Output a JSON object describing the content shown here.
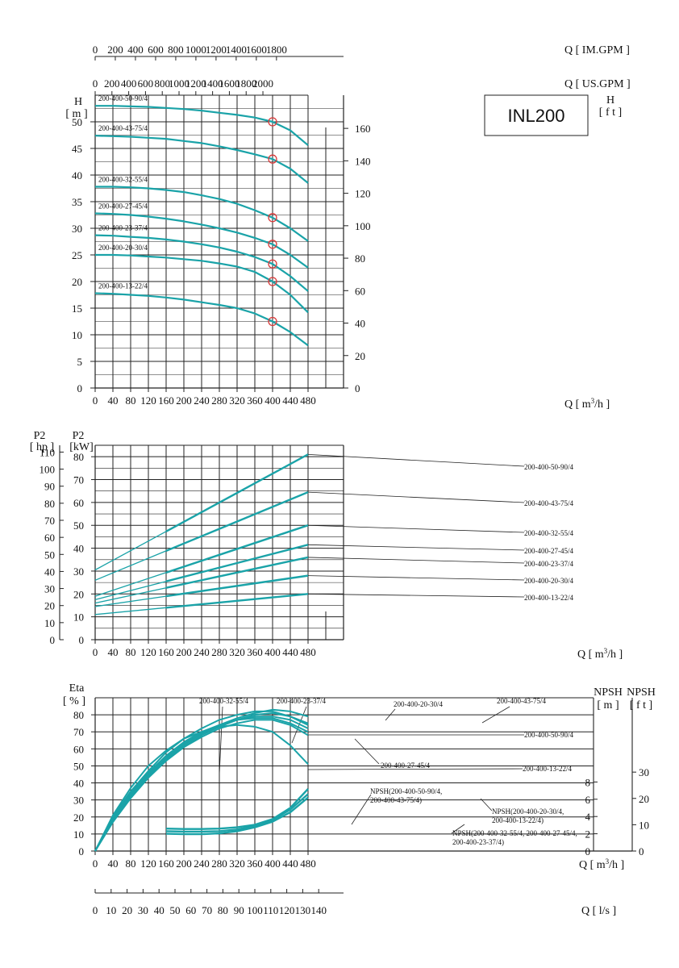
{
  "chart_data": [
    {
      "type": "line",
      "title": "INL200",
      "flow_axes": {
        "im_gpm": {
          "label": "Q [ IM.GPM ]",
          "ticks": [
            0,
            200,
            400,
            600,
            800,
            1000,
            1200,
            1400,
            1600,
            1800
          ]
        },
        "us_gpm": {
          "label": "Q [ US.GPM ]",
          "ticks": [
            0,
            200,
            400,
            600,
            800,
            1000,
            1200,
            1400,
            1600,
            1800,
            2000
          ]
        },
        "m3h": {
          "label": "Q [ m³/h ]",
          "ticks": [
            0,
            40,
            80,
            120,
            160,
            200,
            240,
            280,
            320,
            360,
            400,
            440,
            480
          ]
        }
      },
      "xlim": [
        0,
        560
      ],
      "ylabel_left": {
        "symbol": "H",
        "unit": "[ m ]"
      },
      "ylabel_right": {
        "symbol": "H",
        "unit": "[ f t ]"
      },
      "ylim": [
        0,
        55
      ],
      "y_ticks_left": [
        0,
        5,
        10,
        15,
        20,
        25,
        30,
        35,
        40,
        45,
        50
      ],
      "y_ticks_right": [
        0,
        20,
        40,
        60,
        80,
        100,
        120,
        140,
        160
      ],
      "x": [
        0,
        40,
        80,
        120,
        160,
        200,
        240,
        280,
        320,
        360,
        400,
        440,
        480
      ],
      "series": [
        {
          "name": "200-400-50-90/4",
          "values": [
            53,
            53,
            52.9,
            52.8,
            52.6,
            52.4,
            52.1,
            51.7,
            51.3,
            50.8,
            50.0,
            48.4,
            45.6
          ]
        },
        {
          "name": "200-400-43-75/4",
          "values": [
            47.4,
            47.3,
            47.2,
            47.0,
            46.8,
            46.4,
            46.0,
            45.4,
            44.7,
            43.9,
            43.0,
            41.2,
            38.5
          ]
        },
        {
          "name": "200-400-32-55/4",
          "values": [
            37.8,
            37.8,
            37.7,
            37.5,
            37.2,
            36.8,
            36.2,
            35.5,
            34.6,
            33.4,
            32.0,
            30.0,
            27.6
          ]
        },
        {
          "name": "200-400-27-45/4",
          "values": [
            32.8,
            32.7,
            32.5,
            32.2,
            31.8,
            31.3,
            30.7,
            30.0,
            29.2,
            28.2,
            27.0,
            25.0,
            22.6
          ]
        },
        {
          "name": "200-400-23-37/4",
          "values": [
            28.7,
            28.6,
            28.4,
            28.2,
            27.9,
            27.5,
            27.0,
            26.4,
            25.6,
            24.6,
            23.3,
            21.0,
            18.2
          ]
        },
        {
          "name": "200-400-20-30/4",
          "values": [
            25.0,
            25.0,
            24.9,
            24.7,
            24.5,
            24.2,
            23.9,
            23.4,
            22.8,
            21.8,
            20.0,
            17.5,
            14.2
          ]
        },
        {
          "name": "200-400-13-22/4",
          "values": [
            17.8,
            17.7,
            17.5,
            17.3,
            17.0,
            16.6,
            16.1,
            15.6,
            15.0,
            14.0,
            12.5,
            10.5,
            8.0
          ]
        }
      ],
      "markers": [
        {
          "series": "200-400-50-90/4",
          "x": 400,
          "y": 50.0
        },
        {
          "series": "200-400-43-75/4",
          "x": 400,
          "y": 43.0
        },
        {
          "series": "200-400-32-55/4",
          "x": 400,
          "y": 32.0
        },
        {
          "series": "200-400-27-45/4",
          "x": 400,
          "y": 27.0
        },
        {
          "series": "200-400-23-37/4",
          "x": 400,
          "y": 23.3
        },
        {
          "series": "200-400-20-30/4",
          "x": 400,
          "y": 20.0
        },
        {
          "series": "200-400-13-22/4",
          "x": 400,
          "y": 12.5
        }
      ],
      "grid": true
    },
    {
      "type": "line",
      "title": "",
      "ylabel_left": {
        "symbol": "P2",
        "unit": "[ hp ]"
      },
      "ylabel_right": {
        "symbol": "P2",
        "unit": "[kW]"
      },
      "kw_ticks": [
        0,
        10,
        20,
        30,
        40,
        50,
        60,
        70,
        80
      ],
      "hp_ticks": [
        0,
        10,
        20,
        30,
        40,
        50,
        60,
        70,
        80,
        90,
        100,
        110
      ],
      "ylim": [
        0,
        85
      ],
      "xlim": [
        0,
        560
      ],
      "x_ticks": [
        0,
        40,
        80,
        120,
        160,
        200,
        240,
        280,
        320,
        360,
        400,
        440,
        480
      ],
      "xlabel": "Q [ m³/h ]",
      "series": [
        {
          "name": "200-400-50-90/4",
          "x": [
            0,
            480
          ],
          "values": [
            30.5,
            81.0
          ]
        },
        {
          "name": "200-400-43-75/4",
          "x": [
            0,
            480
          ],
          "values": [
            26.0,
            64.5
          ]
        },
        {
          "name": "200-400-32-55/4",
          "x": [
            0,
            480
          ],
          "values": [
            19.0,
            50.0
          ]
        },
        {
          "name": "200-400-27-45/4",
          "x": [
            0,
            480
          ],
          "values": [
            17.5,
            41.5
          ]
        },
        {
          "name": "200-400-23-37/4",
          "x": [
            0,
            480
          ],
          "values": [
            16.0,
            36.0
          ]
        },
        {
          "name": "200-400-20-30/4",
          "x": [
            0,
            480
          ],
          "values": [
            14.5,
            28.0
          ]
        },
        {
          "name": "200-400-13-22/4",
          "x": [
            0,
            480
          ],
          "values": [
            11.0,
            20.0
          ]
        }
      ],
      "grid": true
    },
    {
      "type": "line",
      "title": "",
      "ylabel_left": {
        "symbol": "Eta",
        "unit": "[ % ]"
      },
      "npsh_m": {
        "symbol": "NPSH",
        "unit": "[ m ]",
        "ticks": [
          0,
          2,
          4,
          6,
          8
        ]
      },
      "npsh_ft": {
        "symbol": "NPSH",
        "unit": "[ f t ]",
        "ticks": [
          0,
          10,
          20,
          30
        ]
      },
      "eta_ticks": [
        0,
        10,
        20,
        30,
        40,
        50,
        60,
        70,
        80
      ],
      "ylim": [
        0,
        90
      ],
      "xlim": [
        0,
        560
      ],
      "x_ticks": [
        0,
        40,
        80,
        120,
        160,
        200,
        240,
        280,
        320,
        360,
        400,
        440,
        480
      ],
      "xlabel": "Q [ m³/h ]",
      "efficiency_series": [
        {
          "name": "200-400-32-55/4",
          "x": [
            0,
            40,
            80,
            120,
            160,
            200,
            240,
            280,
            320,
            360,
            400,
            440,
            480
          ],
          "values": [
            0,
            19,
            34,
            46,
            56,
            64,
            70,
            74,
            77,
            78,
            78,
            75,
            70
          ]
        },
        {
          "name": "200-400-23-37/4",
          "x": [
            0,
            40,
            80,
            120,
            160,
            200,
            240,
            280,
            320,
            360,
            400,
            440,
            480
          ],
          "values": [
            0,
            19,
            33,
            45,
            55,
            63,
            69,
            74,
            77,
            79,
            79,
            77,
            72
          ]
        },
        {
          "name": "200-400-20-30/4",
          "x": [
            0,
            40,
            80,
            120,
            160,
            200,
            240,
            280,
            320,
            360,
            400,
            440,
            480
          ],
          "values": [
            0,
            20,
            35,
            47,
            58,
            66,
            72,
            77,
            80,
            82,
            82,
            79,
            74
          ]
        },
        {
          "name": "200-400-43-75/4",
          "x": [
            0,
            40,
            80,
            120,
            160,
            200,
            240,
            280,
            320,
            360,
            400,
            440,
            480
          ],
          "values": [
            0,
            18,
            32,
            44,
            54,
            62,
            69,
            74,
            78,
            81,
            83,
            82,
            79
          ]
        },
        {
          "name": "200-400-27-45/4",
          "x": [
            0,
            40,
            80,
            120,
            160,
            200,
            240,
            280,
            320,
            360,
            400,
            440,
            480
          ],
          "values": [
            0,
            18,
            32,
            44,
            53,
            61,
            67,
            72,
            75,
            77,
            77,
            74,
            68
          ]
        },
        {
          "name": "200-400-50-90/4",
          "x": [
            0,
            40,
            80,
            120,
            160,
            200,
            240,
            280,
            320,
            360,
            400,
            440,
            480
          ],
          "values": [
            0,
            17,
            31,
            43,
            53,
            61,
            68,
            73,
            77,
            80,
            81,
            79,
            75
          ]
        },
        {
          "name": "200-400-13-22/4",
          "x": [
            0,
            40,
            80,
            120,
            160,
            200,
            240,
            280,
            320,
            360,
            400,
            440,
            480
          ],
          "values": [
            0,
            21,
            37,
            50,
            59,
            66,
            70,
            73,
            74,
            73,
            70,
            62,
            51
          ]
        }
      ],
      "npsh_series": [
        {
          "name": "NPSH(200-400-50-90/4, 200-400-43-75/4)",
          "x": [
            160,
            200,
            240,
            280,
            320,
            360,
            400,
            440,
            480
          ],
          "values": [
            2.6,
            2.55,
            2.55,
            2.6,
            2.75,
            3.05,
            3.7,
            5.0,
            7.2
          ]
        },
        {
          "name": "NPSH(200-400-20-30/4, 200-400-13-22/4)",
          "x": [
            160,
            200,
            240,
            280,
            320,
            360,
            400,
            440,
            480
          ],
          "values": [
            2.3,
            2.25,
            2.25,
            2.3,
            2.5,
            2.9,
            3.6,
            4.8,
            6.6
          ]
        },
        {
          "name": "NPSH(200-400-32-55/4, 200-400-27-45/4, 200-400-23-37/4)",
          "x": [
            160,
            200,
            240,
            280,
            320,
            360,
            400,
            440,
            480
          ],
          "values": [
            2.0,
            1.95,
            1.95,
            2.05,
            2.3,
            2.75,
            3.4,
            4.5,
            6.2
          ]
        }
      ],
      "series_labels": {
        "label_32_55": "200-400-32-55/4",
        "label_23_37": "200-400-23-37/4",
        "label_20_30": "200-400-20-30/4",
        "label_43_75": "200-400-43-75/4",
        "label_50_90": "200-400-50-90/4",
        "label_27_45": "200-400-27-45/4",
        "label_13_22": "200-400-13-22/4",
        "npsh_a_1": "NPSH(200-400-50-90/4,",
        "npsh_a_2": "200-400-43-75/4)",
        "npsh_b_1": "NPSH(200-400-20-30/4,",
        "npsh_b_2": "200-400-13-22/4)",
        "npsh_c_1": "NPSH(200-400-32-55/4, 200-400-27-45/4,",
        "npsh_c_2": "200-400-23-37/4)"
      },
      "grid": true
    },
    {
      "type": "axis",
      "label": "Q [ l/s ]",
      "ticks": [
        0,
        10,
        20,
        30,
        40,
        50,
        60,
        70,
        80,
        90,
        100,
        110,
        120,
        130,
        140
      ]
    }
  ],
  "colors": {
    "curve": "#1aa3a8",
    "grid": "#222222",
    "marker": "#d93a3a"
  }
}
